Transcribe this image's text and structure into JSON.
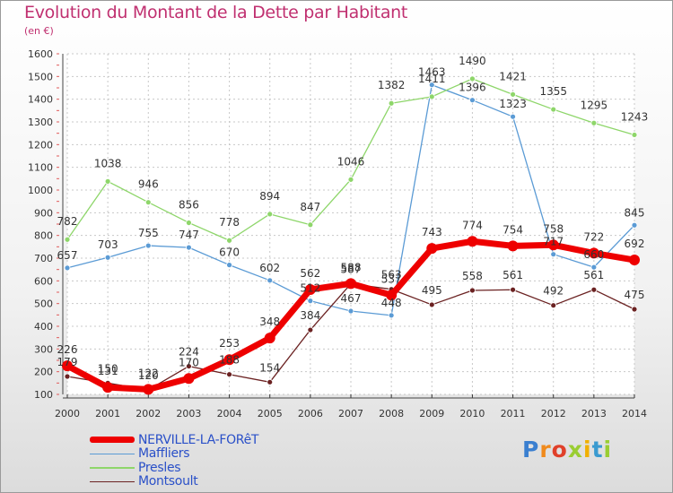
{
  "title": "Evolution du Montant de la Dette par Habitant",
  "subtitle": "(en €)",
  "watermark": {
    "text": "Proxiti",
    "colors": [
      "#3a7fd0",
      "#f08a1c",
      "#e0402a",
      "#9acd32",
      "#f0b000",
      "#3a9ad0",
      "#9acd32"
    ]
  },
  "chart_data": {
    "type": "line",
    "title": "Evolution du Montant de la Dette par Habitant",
    "subtitle": "(en €)",
    "xlabel": "",
    "ylabel": "",
    "x": [
      2000,
      2001,
      2002,
      2003,
      2004,
      2005,
      2006,
      2007,
      2008,
      2009,
      2010,
      2011,
      2012,
      2013,
      2014
    ],
    "ylim": [
      100,
      1600
    ],
    "yticks": [
      100,
      200,
      300,
      400,
      500,
      600,
      700,
      800,
      900,
      1000,
      1100,
      1200,
      1300,
      1400,
      1500,
      1600
    ],
    "grid": true,
    "legend_position": "bottom-left",
    "series": [
      {
        "name": "Maffliers",
        "color": "#5b9bd5",
        "values": [
          657,
          703,
          755,
          747,
          670,
          602,
          512,
          467,
          448,
          1463,
          1396,
          1323,
          717,
          660,
          845
        ]
      },
      {
        "name": "Presles",
        "color": "#8ed66a",
        "values": [
          782,
          1038,
          946,
          856,
          778,
          894,
          847,
          1046,
          1382,
          1411,
          1490,
          1421,
          1355,
          1295,
          1243
        ]
      },
      {
        "name": "Montsoult",
        "color": "#6b2222",
        "values": [
          179,
          150,
          120,
          224,
          188,
          154,
          384,
          587,
          563,
          495,
          558,
          561,
          492,
          561,
          475
        ]
      },
      {
        "name": "NERVILLE-LA-FORêT",
        "color": "#ee0000",
        "values": [
          226,
          131,
          122,
          170,
          253,
          348,
          562,
          588,
          537,
          743,
          774,
          754,
          758,
          722,
          692
        ]
      }
    ],
    "legend_order": [
      "NERVILLE-LA-FORêT",
      "Maffliers",
      "Presles",
      "Montsoult"
    ]
  }
}
